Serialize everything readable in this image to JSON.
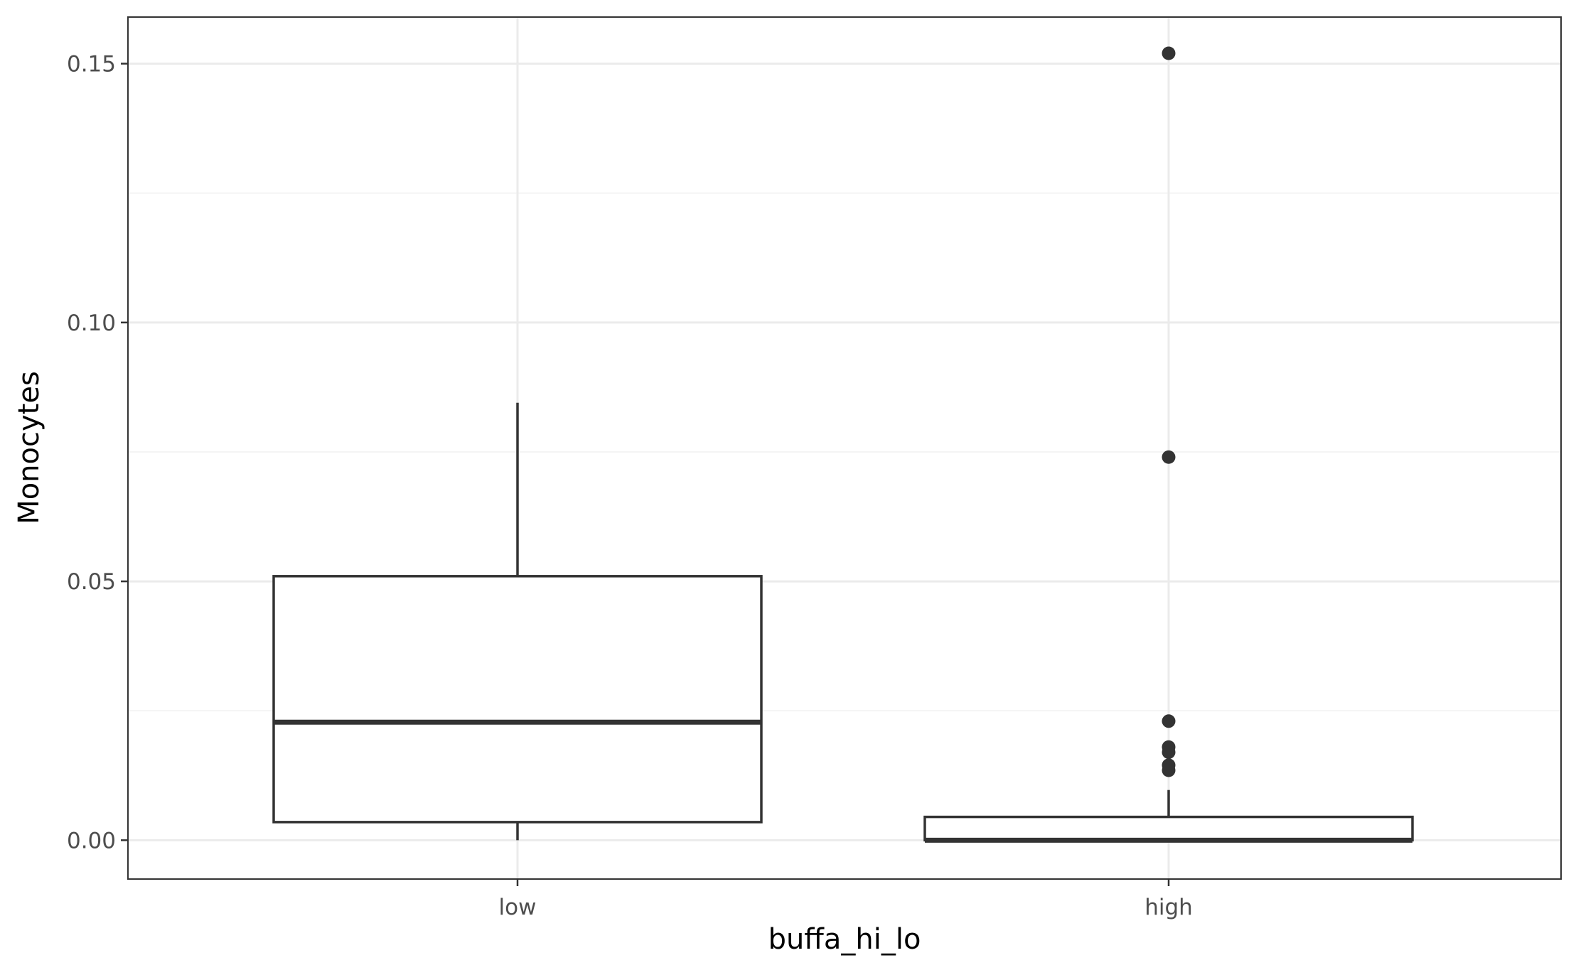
{
  "chart_data": {
    "type": "boxplot",
    "xlabel": "buffa_hi_lo",
    "ylabel": "Monocytes",
    "categories": [
      "low",
      "high"
    ],
    "ylim": [
      -0.0075,
      0.159
    ],
    "y_ticks": [
      0.0,
      0.05,
      0.1,
      0.15
    ],
    "y_tick_labels": [
      "0.00",
      "0.05",
      "0.10",
      "0.15"
    ],
    "grid": true,
    "boxes": [
      {
        "category": "low",
        "whisker_low": 0.0,
        "q1": 0.0035,
        "median": 0.0228,
        "q3": 0.051,
        "whisker_high": 0.0845,
        "outliers": []
      },
      {
        "category": "high",
        "whisker_low": 0.0,
        "q1": 0.0,
        "median": 0.0,
        "q3": 0.0045,
        "whisker_high": 0.0097,
        "outliers": [
          0.152,
          0.074,
          0.023,
          0.018,
          0.017,
          0.0145,
          0.0135
        ]
      }
    ],
    "colors": {
      "box_outline": "#333333",
      "box_fill": "#ffffff",
      "grid": "#ebebeb",
      "panel_border": "#333333",
      "background": "#ffffff"
    }
  }
}
